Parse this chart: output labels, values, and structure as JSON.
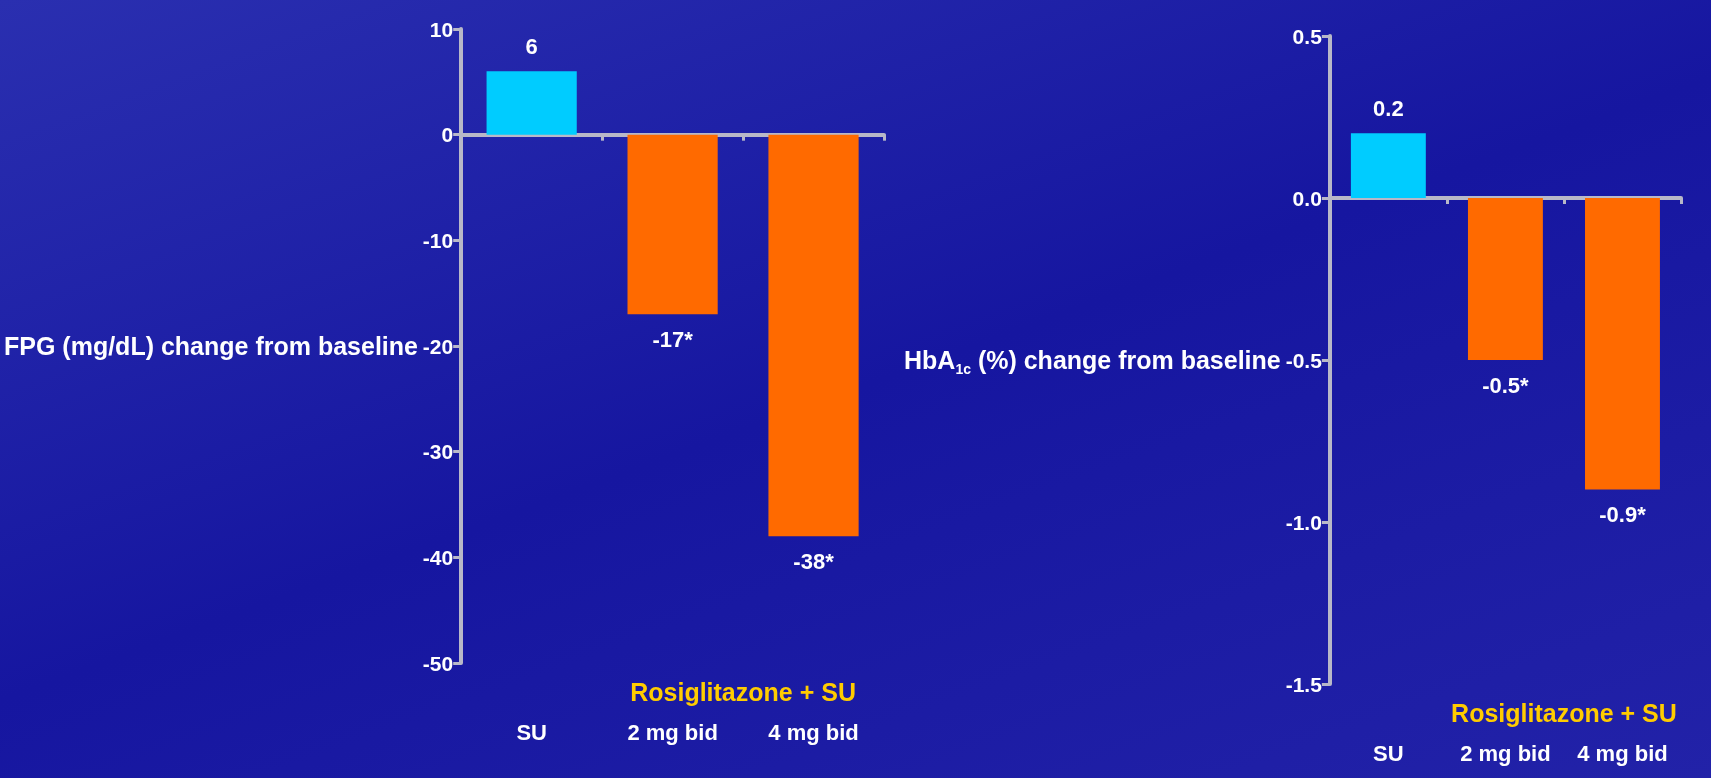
{
  "chart_data": [
    {
      "type": "bar",
      "ylabel": "FPG (mg/dL) change from baseline",
      "categories": [
        "SU",
        "2 mg bid",
        "4 mg bid"
      ],
      "values": [
        6,
        -17,
        -38
      ],
      "colors": [
        "#00ccff",
        "#ff6a00",
        "#ff6a00"
      ],
      "value_labels": [
        "6",
        "-17*",
        "-38*"
      ],
      "ylim": [
        -50,
        10
      ],
      "yticks": [
        -50,
        -40,
        -30,
        -20,
        -10,
        0,
        10
      ],
      "annotations": [
        "Rosiglitazone + SU"
      ]
    },
    {
      "type": "bar",
      "ylabel": "HbA$_{1c}$ (%) change from baseline",
      "categories": [
        "SU",
        "2 mg bid",
        "4 mg bid"
      ],
      "values": [
        0.2,
        -0.5,
        -0.9
      ],
      "colors": [
        "#00ccff",
        "#ff6a00",
        "#ff6a00"
      ],
      "value_labels": [
        "0.2",
        "-0.5*",
        "-0.9*"
      ],
      "ylim": [
        -1.5,
        0.5
      ],
      "yticks": [
        {
          "value": -1.5,
          "label": "-1.5"
        },
        {
          "value": -1.0,
          "label": "-1.0"
        },
        {
          "value": -0.5,
          "label": "-0.5"
        },
        {
          "value": 0.0,
          "label": "0.0"
        },
        {
          "value": 0.5,
          "label": "0.5"
        }
      ],
      "annotations": [
        "Rosiglitazone + SU"
      ]
    }
  ]
}
